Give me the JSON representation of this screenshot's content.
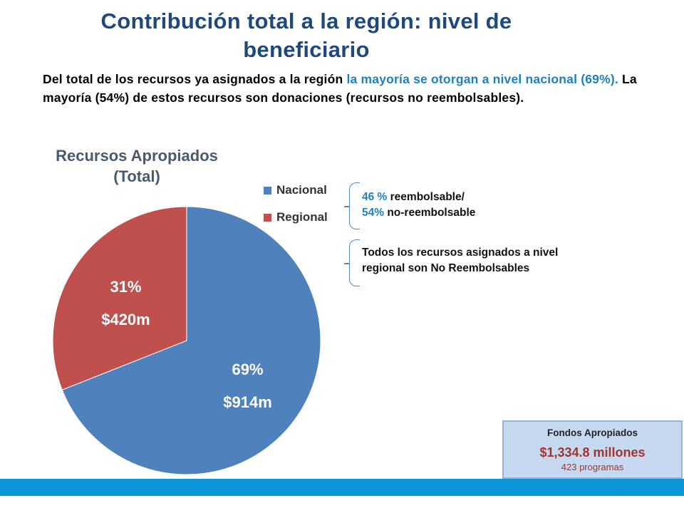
{
  "header": {
    "title_line1": "Contribución total a la región: nivel de",
    "title_line2": "beneficiario"
  },
  "intro": {
    "part1": "Del total de los recursos ya asignados a la región ",
    "part2_highlight": "la mayoría se otorgan a nivel nacional (69%).",
    "part3": "   La mayoría (54%) de estos recursos son donaciones (recursos no reembolsables)."
  },
  "chart_data": {
    "type": "pie",
    "title_line1": "Recursos Apropiados",
    "title_line2": "(Total)",
    "slices": [
      {
        "name": "Nacional",
        "value": 69,
        "pct_label": "69%",
        "amount_label": "$914m",
        "color": "#4f81bd"
      },
      {
        "name": "Regional",
        "value": 31,
        "pct_label": "31%",
        "amount_label": "$420m",
        "color": "#c0504d"
      }
    ],
    "legend_placement": "right"
  },
  "notes": {
    "nacional_pct1": "46 %",
    "nacional_text1": " reembolsable/",
    "nacional_pct2": "54%",
    "nacional_text2": " no-reembolsable",
    "regional_line1": "Todos los recursos asignados a nivel",
    "regional_line2": "regional son No Reembolsables"
  },
  "fondos": {
    "label": "Fondos Apropiados",
    "amount": "$1,334.8 millones",
    "count": "423 programas"
  },
  "colors": {
    "title": "#1f497d",
    "highlight": "#1f7fc4",
    "bar": "#0a96d7"
  }
}
